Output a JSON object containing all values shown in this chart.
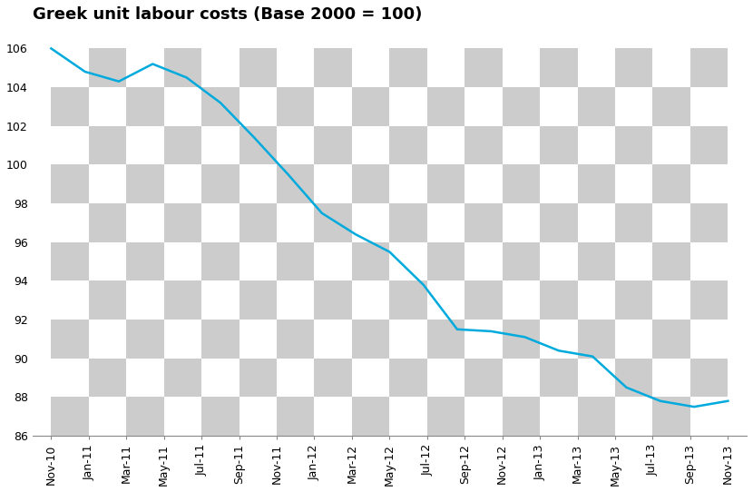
{
  "title": "Greek unit labour costs (Base 2000 = 100)",
  "line_color": "#00AADD",
  "line_width": 1.8,
  "background_checker_colors": [
    "#CCCCCC",
    "#FFFFFF"
  ],
  "ylim": [
    86,
    107
  ],
  "yticks": [
    86,
    88,
    90,
    92,
    94,
    96,
    98,
    100,
    102,
    104,
    106
  ],
  "x_labels": [
    "Nov-10",
    "Jan-11",
    "Mar-11",
    "May-11",
    "Jul-11",
    "Sep-11",
    "Nov-11",
    "Jan-12",
    "Mar-12",
    "May-12",
    "Jul-12",
    "Sep-12",
    "Nov-12",
    "Jan-13",
    "Mar-13",
    "May-13",
    "Jul-13",
    "Sep-13",
    "Nov-13"
  ],
  "values": [
    106.0,
    104.8,
    104.3,
    105.2,
    104.5,
    103.2,
    101.4,
    99.5,
    97.5,
    96.4,
    95.5,
    93.8,
    91.5,
    91.4,
    91.1,
    90.4,
    90.1,
    88.5,
    87.8,
    87.5,
    87.8
  ],
  "title_fontsize": 13,
  "tick_fontsize": 9
}
